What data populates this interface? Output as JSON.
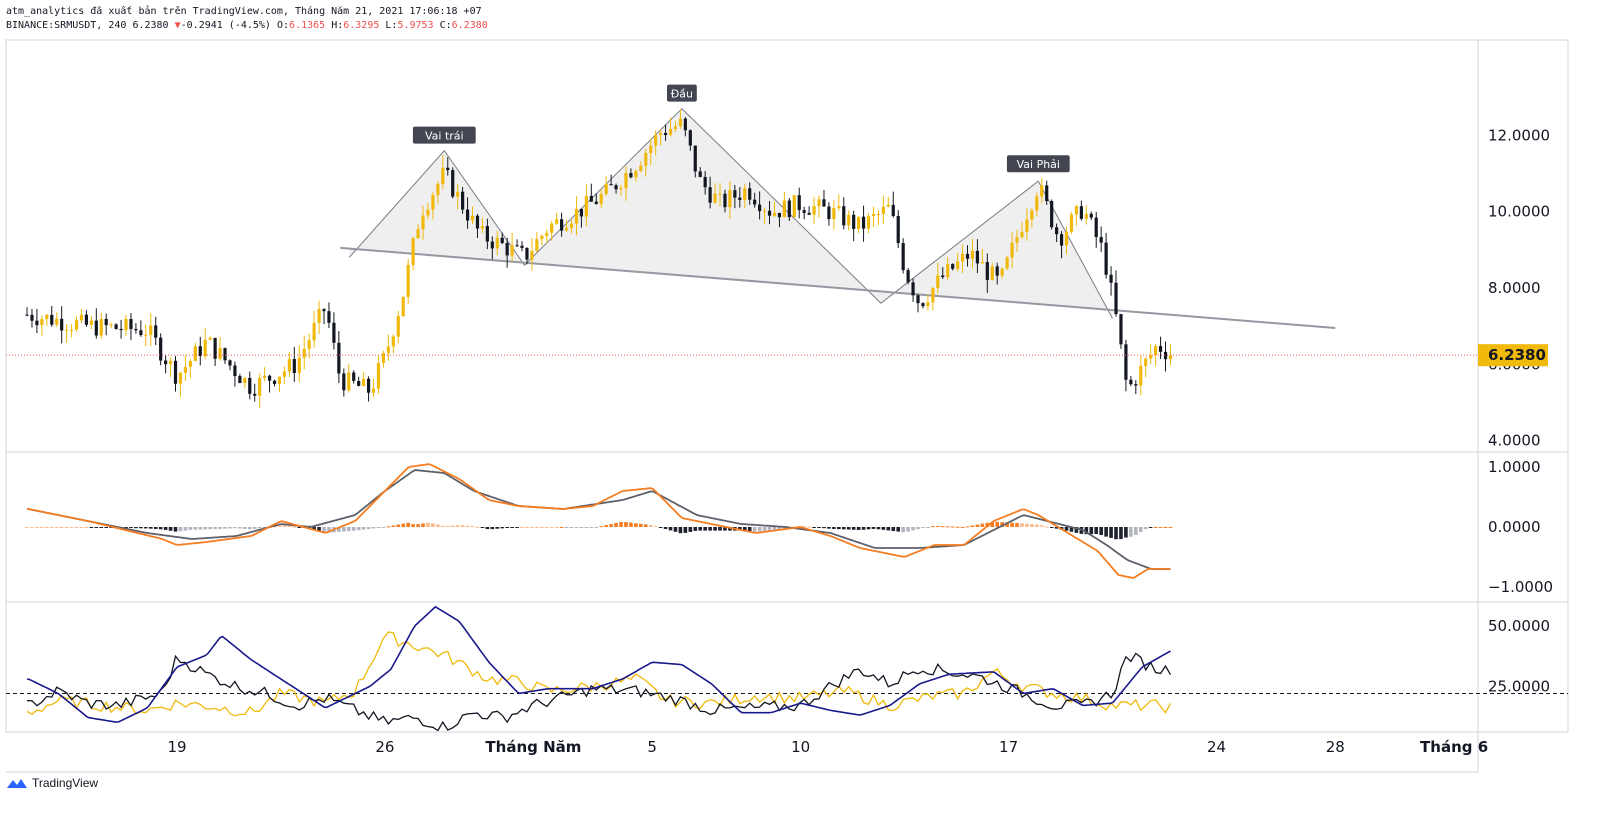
{
  "header": {
    "line1": "atm_analytics đã xuất bản trên TradingView.com, Tháng Năm 21, 2021 17:06:18 +07",
    "symbol": "BINANCE:SRMUSDT, 240",
    "last": "6.2380",
    "change_arrow": "▼",
    "change": "-0.2941 (-4.5%)",
    "o_label": "O:",
    "o_val": "6.1365",
    "h_label": "H:",
    "h_val": "6.3295",
    "l_label": "L:",
    "l_val": "5.9753",
    "c_label": "C:",
    "c_val": "6.2380"
  },
  "colors": {
    "up": "#f0b90b",
    "down": "#131722",
    "macd": "#f57c1f",
    "signal": "#5d606b",
    "dmi_plus": "#131722",
    "dmi_minus": "#f0b90b",
    "adx": "#1a1a8c",
    "price_line": "#ef5350",
    "pattern_fill": "#e0e0e0"
  },
  "chart_data": [
    {
      "type": "candlestick",
      "name": "BINANCE:SRMUSDT, 240",
      "y_ticks": [
        "12.0000",
        "10.0000",
        "8.0000",
        "6.0000",
        "4.0000"
      ],
      "y_tick_values": [
        12,
        10,
        8,
        6,
        4
      ],
      "ylim": [
        3.7,
        14.5
      ],
      "x_ticks": [
        "19",
        "26",
        "Tháng Năm",
        "5",
        "10",
        "17",
        "24",
        "28",
        "Tháng 6"
      ],
      "x_ticks_bold": [
        false,
        false,
        true,
        false,
        false,
        false,
        false,
        false,
        true
      ],
      "x_tick_days": [
        19,
        26,
        31,
        35,
        40,
        47,
        54,
        58,
        62
      ],
      "current_price": "6.2380",
      "current_price_value": 6.238,
      "annotations": [
        {
          "text": "Vai trái",
          "day": 28.0,
          "price": 11.6
        },
        {
          "text": "Đầu",
          "day": 36.0,
          "price": 12.7
        },
        {
          "text": "Vai Phải",
          "day": 48.0,
          "price": 10.85
        }
      ],
      "neckline": {
        "start": [
          24.5,
          9.05
        ],
        "end": [
          58.0,
          6.95
        ]
      },
      "pattern_points": [
        [
          24.8,
          8.8
        ],
        [
          28.0,
          11.6
        ],
        [
          30.7,
          8.6
        ],
        [
          36.0,
          12.7
        ],
        [
          42.7,
          7.6
        ],
        [
          48.0,
          10.8
        ],
        [
          50.5,
          7.2
        ]
      ],
      "anchor_closes": [
        [
          14.0,
          7.3
        ],
        [
          16.0,
          7.0
        ],
        [
          18.0,
          6.9
        ],
        [
          19.0,
          5.7
        ],
        [
          20.0,
          6.6
        ],
        [
          21.5,
          5.4
        ],
        [
          23.0,
          6.0
        ],
        [
          24.0,
          7.5
        ],
        [
          24.5,
          5.6
        ],
        [
          25.5,
          5.3
        ],
        [
          26.0,
          6.2
        ],
        [
          26.6,
          7.8
        ],
        [
          27.2,
          10.0
        ],
        [
          28.0,
          11.0
        ],
        [
          28.6,
          10.2
        ],
        [
          29.2,
          9.4
        ],
        [
          30.0,
          9.1
        ],
        [
          30.7,
          8.8
        ],
        [
          31.5,
          9.6
        ],
        [
          32.5,
          10.0
        ],
        [
          33.5,
          10.5
        ],
        [
          34.5,
          11.3
        ],
        [
          35.3,
          12.1
        ],
        [
          36.0,
          12.3
        ],
        [
          36.6,
          10.8
        ],
        [
          37.3,
          10.2
        ],
        [
          38.2,
          10.6
        ],
        [
          39.0,
          10.0
        ],
        [
          40.0,
          10.2
        ],
        [
          41.0,
          10.0
        ],
        [
          42.0,
          9.6
        ],
        [
          43.0,
          10.1
        ],
        [
          43.5,
          8.5
        ],
        [
          44.0,
          7.6
        ],
        [
          44.8,
          8.3
        ],
        [
          45.7,
          8.9
        ],
        [
          46.7,
          8.1
        ],
        [
          47.4,
          9.6
        ],
        [
          48.0,
          10.7
        ],
        [
          48.7,
          9.3
        ],
        [
          49.5,
          10.1
        ],
        [
          50.2,
          8.9
        ],
        [
          50.6,
          7.3
        ],
        [
          51.0,
          5.3
        ],
        [
          51.5,
          5.9
        ],
        [
          52.0,
          6.5
        ],
        [
          52.5,
          6.24
        ]
      ]
    },
    {
      "type": "macd",
      "y_ticks": [
        "1.0000",
        "0.0000",
        "−1.0000"
      ],
      "y_tick_values": [
        1,
        0,
        -1
      ],
      "ylim": [
        -1.25,
        1.25
      ],
      "macd_anchors": [
        [
          14.0,
          0.3
        ],
        [
          16.0,
          0.1
        ],
        [
          18.5,
          -0.2
        ],
        [
          19.0,
          -0.3
        ],
        [
          20.0,
          -0.25
        ],
        [
          21.5,
          -0.15
        ],
        [
          22.5,
          0.1
        ],
        [
          24.0,
          -0.1
        ],
        [
          25.0,
          0.1
        ],
        [
          26.0,
          0.6
        ],
        [
          26.8,
          1.0
        ],
        [
          27.5,
          1.05
        ],
        [
          28.5,
          0.8
        ],
        [
          29.5,
          0.45
        ],
        [
          30.5,
          0.35
        ],
        [
          32.0,
          0.3
        ],
        [
          33.0,
          0.35
        ],
        [
          34.0,
          0.6
        ],
        [
          35.0,
          0.65
        ],
        [
          36.0,
          0.15
        ],
        [
          37.5,
          0.0
        ],
        [
          38.5,
          -0.1
        ],
        [
          40.0,
          0.0
        ],
        [
          41.0,
          -0.15
        ],
        [
          42.0,
          -0.35
        ],
        [
          43.5,
          -0.5
        ],
        [
          44.5,
          -0.3
        ],
        [
          45.5,
          -0.3
        ],
        [
          46.5,
          0.1
        ],
        [
          47.5,
          0.3
        ],
        [
          48.0,
          0.2
        ],
        [
          49.0,
          -0.1
        ],
        [
          50.0,
          -0.4
        ],
        [
          50.7,
          -0.8
        ],
        [
          51.2,
          -0.85
        ],
        [
          51.7,
          -0.7
        ],
        [
          52.5,
          -0.7
        ]
      ],
      "signal_anchors": [
        [
          14.0,
          0.3
        ],
        [
          16.0,
          0.1
        ],
        [
          18.0,
          -0.1
        ],
        [
          19.5,
          -0.2
        ],
        [
          21.0,
          -0.15
        ],
        [
          22.5,
          0.05
        ],
        [
          23.5,
          0.0
        ],
        [
          25.0,
          0.2
        ],
        [
          26.0,
          0.6
        ],
        [
          27.0,
          0.95
        ],
        [
          28.0,
          0.9
        ],
        [
          29.0,
          0.6
        ],
        [
          30.5,
          0.35
        ],
        [
          32.0,
          0.3
        ],
        [
          34.0,
          0.45
        ],
        [
          35.0,
          0.6
        ],
        [
          36.5,
          0.2
        ],
        [
          38.0,
          0.05
        ],
        [
          39.5,
          0.0
        ],
        [
          41.0,
          -0.1
        ],
        [
          42.5,
          -0.35
        ],
        [
          44.0,
          -0.35
        ],
        [
          45.5,
          -0.3
        ],
        [
          46.5,
          -0.05
        ],
        [
          47.5,
          0.2
        ],
        [
          48.3,
          0.1
        ],
        [
          49.5,
          -0.05
        ],
        [
          50.3,
          -0.3
        ],
        [
          51.0,
          -0.55
        ],
        [
          51.8,
          -0.7
        ],
        [
          52.5,
          -0.7
        ]
      ]
    },
    {
      "type": "dmi",
      "y_ticks": [
        "50.0000",
        "25.0000"
      ],
      "y_tick_values": [
        50,
        25
      ],
      "ylim": [
        6,
        60
      ],
      "reference_level": 22,
      "plus_anchors": [
        [
          14.0,
          17
        ],
        [
          15.0,
          23
        ],
        [
          16.0,
          18
        ],
        [
          17.0,
          17
        ],
        [
          18.5,
          22
        ],
        [
          19.0,
          37
        ],
        [
          20.0,
          30
        ],
        [
          21.0,
          25
        ],
        [
          22.0,
          22
        ],
        [
          23.0,
          17
        ],
        [
          24.0,
          20
        ],
        [
          25.0,
          15
        ],
        [
          26.0,
          10
        ],
        [
          27.0,
          12
        ],
        [
          28.0,
          8
        ],
        [
          29.0,
          14
        ],
        [
          30.0,
          12
        ],
        [
          31.0,
          17
        ],
        [
          33.0,
          24
        ],
        [
          34.5,
          23
        ],
        [
          36.0,
          19
        ],
        [
          37.0,
          15
        ],
        [
          38.5,
          16
        ],
        [
          40.0,
          17
        ],
        [
          41.0,
          25
        ],
        [
          42.0,
          32
        ],
        [
          43.0,
          26
        ],
        [
          44.0,
          33
        ],
        [
          45.0,
          31
        ],
        [
          46.0,
          29
        ],
        [
          47.5,
          22
        ],
        [
          48.5,
          17
        ],
        [
          49.5,
          17
        ],
        [
          50.5,
          22
        ],
        [
          51.0,
          38
        ],
        [
          52.0,
          32
        ],
        [
          52.5,
          32
        ]
      ],
      "minus_anchors": [
        [
          14.0,
          14
        ],
        [
          15.0,
          19
        ],
        [
          16.5,
          17
        ],
        [
          18.0,
          15
        ],
        [
          19.0,
          18
        ],
        [
          20.0,
          17
        ],
        [
          21.5,
          14
        ],
        [
          22.5,
          22
        ],
        [
          24.0,
          18
        ],
        [
          25.0,
          23
        ],
        [
          26.0,
          46
        ],
        [
          27.0,
          42
        ],
        [
          28.0,
          38
        ],
        [
          29.5,
          28
        ],
        [
          30.5,
          27
        ],
        [
          31.5,
          23
        ],
        [
          33.0,
          25
        ],
        [
          34.5,
          28
        ],
        [
          35.5,
          19
        ],
        [
          37.0,
          18
        ],
        [
          38.5,
          21
        ],
        [
          40.0,
          20
        ],
        [
          41.5,
          23
        ],
        [
          43.0,
          17
        ],
        [
          44.5,
          21
        ],
        [
          45.5,
          22
        ],
        [
          46.5,
          31
        ],
        [
          47.5,
          25
        ],
        [
          48.5,
          22
        ],
        [
          49.5,
          20
        ],
        [
          50.5,
          17
        ],
        [
          51.0,
          17
        ],
        [
          52.0,
          17
        ],
        [
          52.5,
          16
        ]
      ],
      "adx_anchors": [
        [
          14.0,
          28
        ],
        [
          15.0,
          22
        ],
        [
          16.0,
          12
        ],
        [
          17.0,
          10
        ],
        [
          18.0,
          16
        ],
        [
          19.0,
          33
        ],
        [
          20.0,
          38
        ],
        [
          20.5,
          46
        ],
        [
          21.5,
          36
        ],
        [
          23.0,
          24
        ],
        [
          24.0,
          16
        ],
        [
          25.0,
          22
        ],
        [
          25.5,
          25
        ],
        [
          26.2,
          32
        ],
        [
          27.0,
          50
        ],
        [
          27.7,
          58
        ],
        [
          28.5,
          52
        ],
        [
          29.5,
          35
        ],
        [
          30.5,
          22
        ],
        [
          31.5,
          24
        ],
        [
          33.0,
          24
        ],
        [
          34.0,
          28
        ],
        [
          35.0,
          35
        ],
        [
          36.0,
          34
        ],
        [
          37.0,
          26
        ],
        [
          38.0,
          14
        ],
        [
          39.0,
          14
        ],
        [
          40.0,
          18
        ],
        [
          41.0,
          15
        ],
        [
          42.0,
          13
        ],
        [
          43.0,
          17
        ],
        [
          44.0,
          26
        ],
        [
          45.0,
          30
        ],
        [
          46.5,
          31
        ],
        [
          47.5,
          22
        ],
        [
          48.5,
          24
        ],
        [
          49.5,
          17
        ],
        [
          50.5,
          18
        ],
        [
          51.5,
          33
        ],
        [
          52.5,
          40
        ]
      ]
    }
  ]
}
